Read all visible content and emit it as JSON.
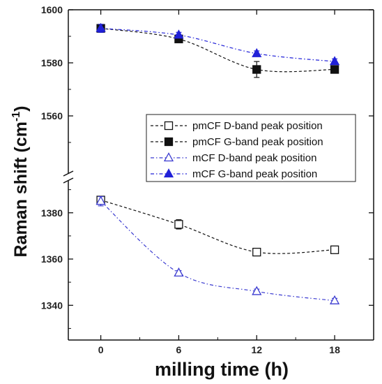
{
  "chart_data": {
    "type": "line",
    "title": "",
    "xlabel": "milling time (h)",
    "ylabel_main": "Raman shift (cm",
    "ylabel_sup": "-1",
    "ylabel_close": ")",
    "x": [
      0,
      6,
      12,
      18
    ],
    "x_ticks": [
      "0",
      "6",
      "12",
      "18"
    ],
    "xlim": [
      -2.5,
      21
    ],
    "upper_ylim": [
      1540,
      1600
    ],
    "upper_yticks": [
      1560,
      1580,
      1600
    ],
    "lower_ylim": [
      1325,
      1392
    ],
    "lower_yticks": [
      1340,
      1360,
      1380
    ],
    "axis_break": true,
    "legend_position": "right-center",
    "series": [
      {
        "name": "pmCF D-band peak position",
        "segment": "lower",
        "marker": "open-square",
        "color": "#111111",
        "values": [
          1385.5,
          1375,
          1363,
          1364
        ],
        "errors": [
          1.5,
          2,
          1,
          0.5
        ]
      },
      {
        "name": "pmCF G-band peak position",
        "segment": "upper",
        "marker": "filled-square",
        "color": "#111111",
        "values": [
          1593,
          1589,
          1577.5,
          1577.5
        ],
        "errors": [
          1.5,
          1,
          3,
          1
        ]
      },
      {
        "name": "mCF D-band peak position",
        "segment": "lower",
        "marker": "open-triangle",
        "color": "#3a3ad0",
        "values": [
          1385,
          1354,
          1346,
          1342
        ],
        "errors": [
          2,
          1,
          1,
          1
        ]
      },
      {
        "name": "mCF G-band peak position",
        "segment": "upper",
        "marker": "filled-triangle",
        "color": "#2020d8",
        "values": [
          1593,
          1590.5,
          1583.5,
          1580.5
        ],
        "errors": [
          1.5,
          1,
          1,
          1
        ]
      }
    ]
  }
}
